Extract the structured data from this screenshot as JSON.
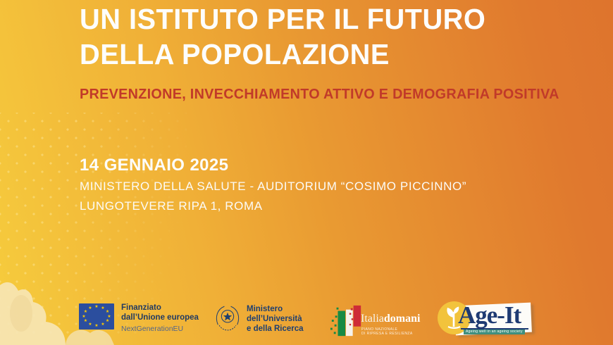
{
  "poster": {
    "title": {
      "line1": "UN ISTITUTO PER IL FUTURO",
      "line2": "DELLA POPOLAZIONE"
    },
    "subtitle": "PREVENZIONE, INVECCHIAMENTO ATTIVO E DEMOGRAFIA POSITIVA",
    "event": {
      "date": "14 GENNAIO 2025",
      "venue": "MINISTERO DELLA SALUTE - AUDITORIUM “COSIMO PICCINNO”",
      "address": "LUNGOTEVERE RIPA 1, ROMA"
    },
    "colors": {
      "background_gradient_start": "#F6CC3D",
      "background_gradient_end": "#DE742D",
      "title_text": "#FFFFFF",
      "subtitle_text": "#C13A29",
      "logo_navy": "#1E3F70",
      "eu_flag_blue": "#2B4E9E",
      "eu_star_yellow": "#FFCC00",
      "italy_green": "#168A43",
      "italy_red": "#CE2B37",
      "ageit_yellow": "#F2C33C"
    },
    "footer_logos": {
      "eu_funding": {
        "line1": "Finanziato",
        "line2": "dall’Unione europea",
        "line3": "NextGenerationEU"
      },
      "ministry": {
        "line1": "Ministero",
        "line2": "dell’Università",
        "line3": "e della Ricerca"
      },
      "italia_domani": {
        "word_regular": "Italia",
        "word_bold": "domani",
        "sub_line1": "PIANO NAZIONALE",
        "sub_line2": "DI RIPRESA E RESILIENZA"
      },
      "age_it": {
        "name": "Age-It",
        "tagline": "Ageing well in an ageing society"
      }
    }
  }
}
